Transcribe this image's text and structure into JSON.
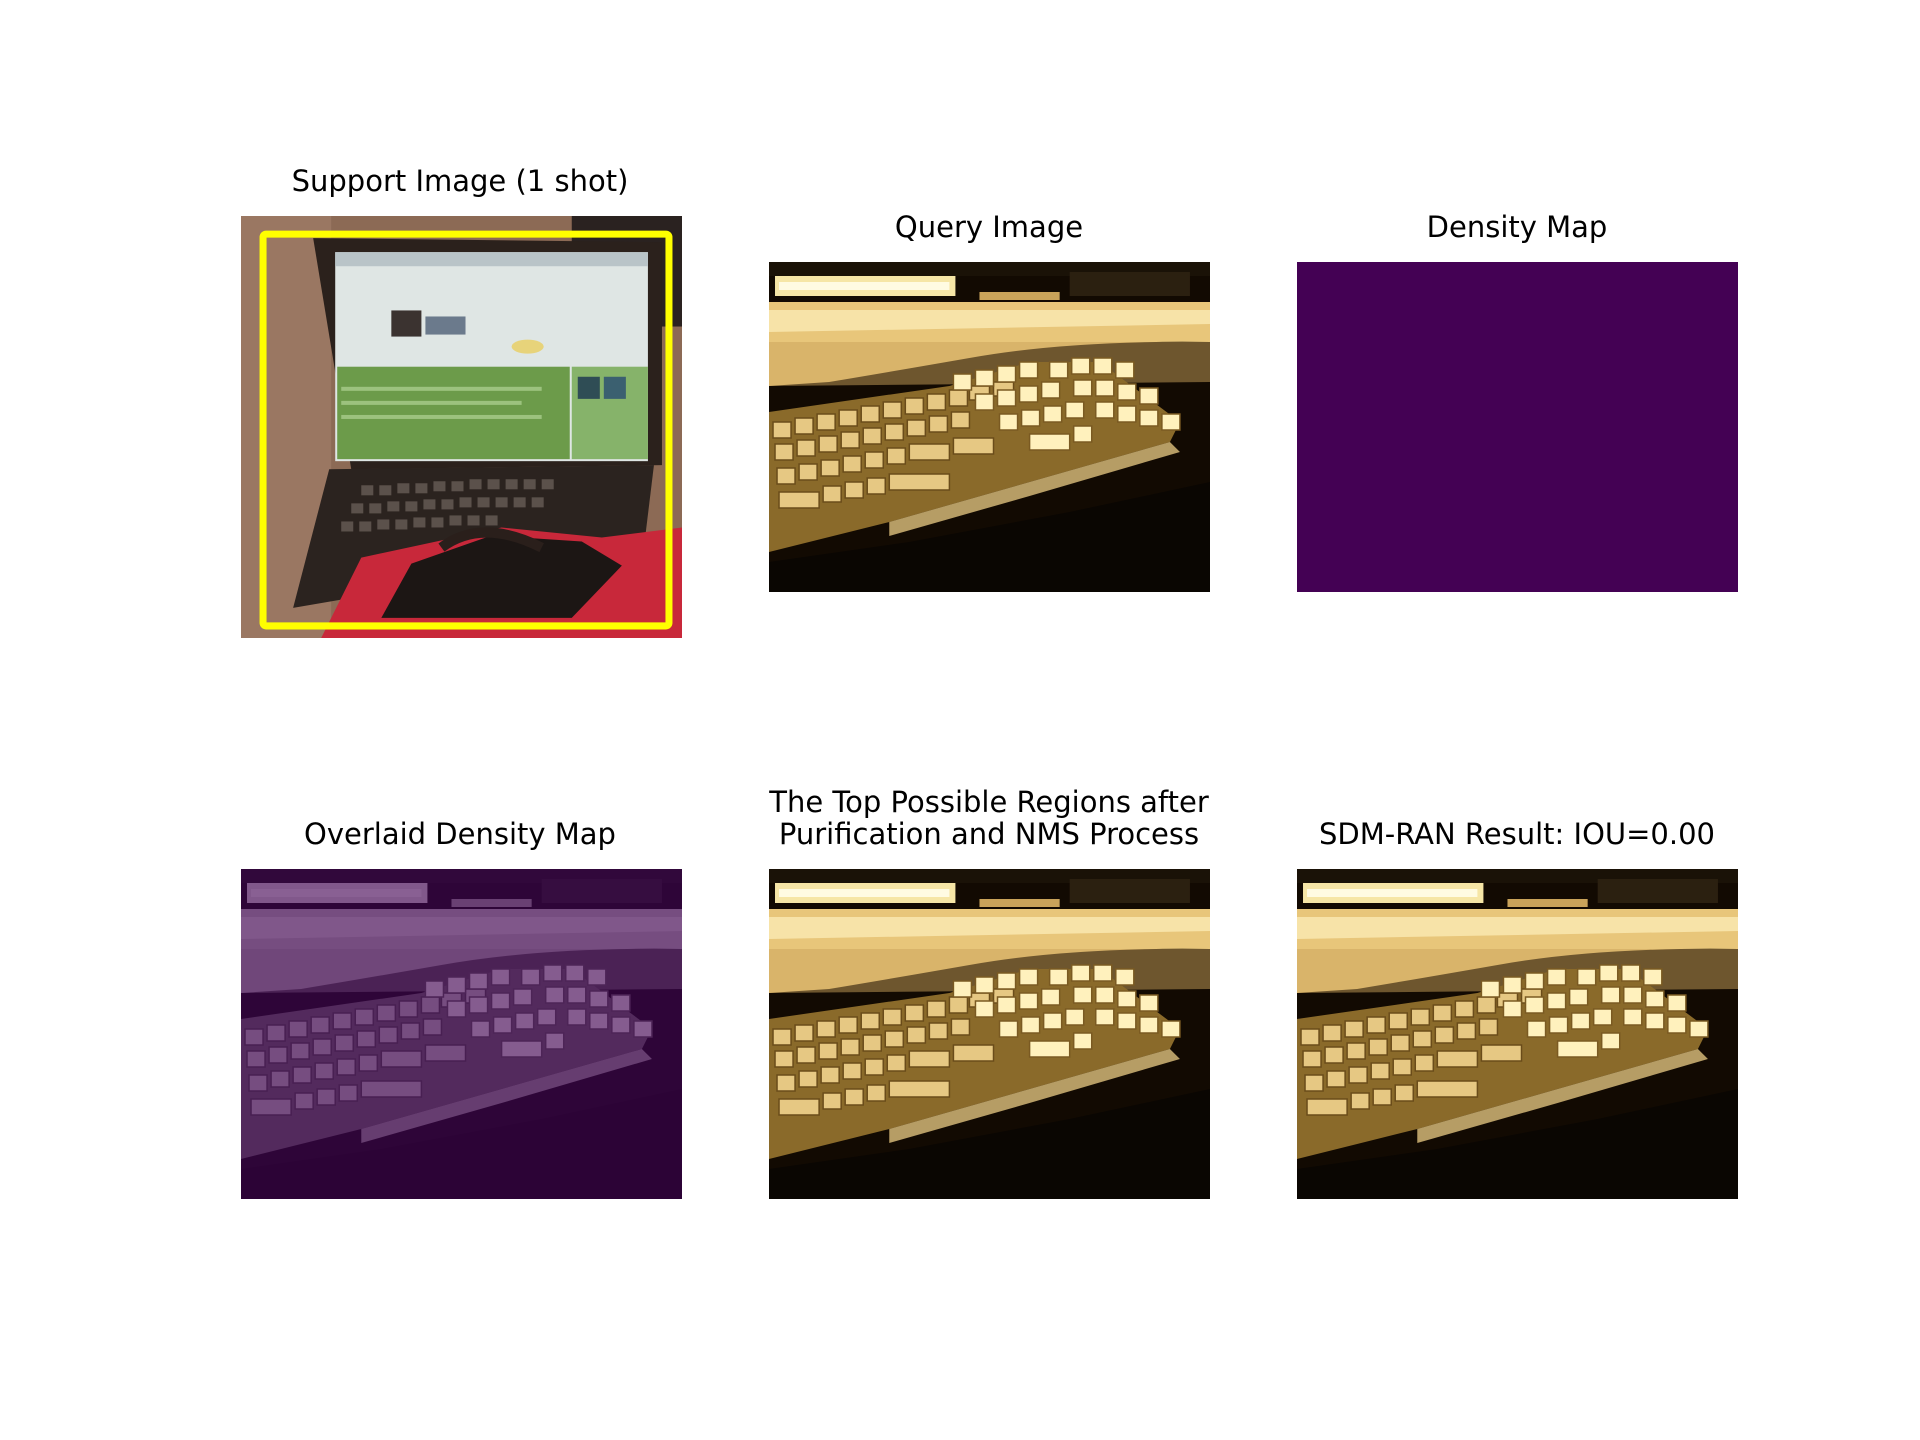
{
  "panels": [
    {
      "title": "Support Image (1 shot)"
    },
    {
      "title": "Query Image"
    },
    {
      "title": "Density Map"
    },
    {
      "title": "Overlaid Density Map"
    },
    {
      "title_lines": [
        "The Top Possible Regions after",
        "Purification and NMS Process"
      ]
    },
    {
      "title": "SDM-RAN Result: IOU=0.00"
    }
  ],
  "colors": {
    "support_box": "#ffff00",
    "density_map_fill": "#440154",
    "overlay_tint": "#440154"
  },
  "icons": {
    "support_image": "laptop-photo",
    "query_image": "keyboard-photo"
  }
}
